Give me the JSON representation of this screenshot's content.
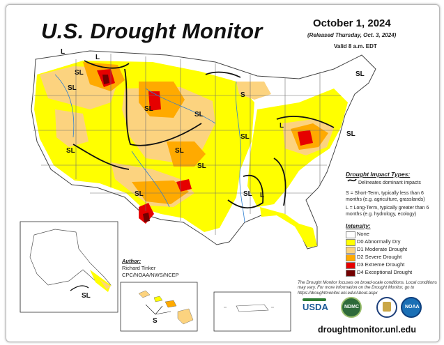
{
  "title": "U.S. Drought Monitor",
  "date": "October 1, 2024",
  "released": "(Released Thursday, Oct. 3, 2024)",
  "valid": "Valid 8 a.m. EDT",
  "impact_types": {
    "title": "Drought Impact Types:",
    "delineates": "Delineates dominant impacts",
    "short_term": "S = Short-Term, typically less than 6 months (e.g. agriculture, grasslands)",
    "long_term": "L = Long-Term, typically greater than 6 months (e.g. hydrology, ecology)"
  },
  "intensity": {
    "title": "Intensity:",
    "items": [
      {
        "label": "None",
        "color": "#ffffff"
      },
      {
        "label": "D0 Abnormally Dry",
        "color": "#ffff00"
      },
      {
        "label": "D1 Moderate Drought",
        "color": "#fcd37f"
      },
      {
        "label": "D2 Severe Drought",
        "color": "#ffaa00"
      },
      {
        "label": "D3 Extreme Drought",
        "color": "#e60000"
      },
      {
        "label": "D4 Exceptional Drought",
        "color": "#730000"
      }
    ]
  },
  "author": {
    "title": "Author:",
    "name": "Richard Tinker",
    "org": "CPC/NOAA/NWS/NCEP"
  },
  "disclaimer": "The Drought Monitor focuses on broad-scale conditions. Local conditions may vary. For more information on the Drought Monitor, go to https://droughtmonitor.unl.edu/About.aspx",
  "website": "droughtmonitor.unl.edu",
  "logos": {
    "usda": "USDA",
    "ndmc": "NDMC",
    "commerce": "commerce-seal-icon",
    "noaa": "NOAA"
  },
  "map_labels": {
    "sl": "SL",
    "s": "S",
    "l": "L"
  }
}
